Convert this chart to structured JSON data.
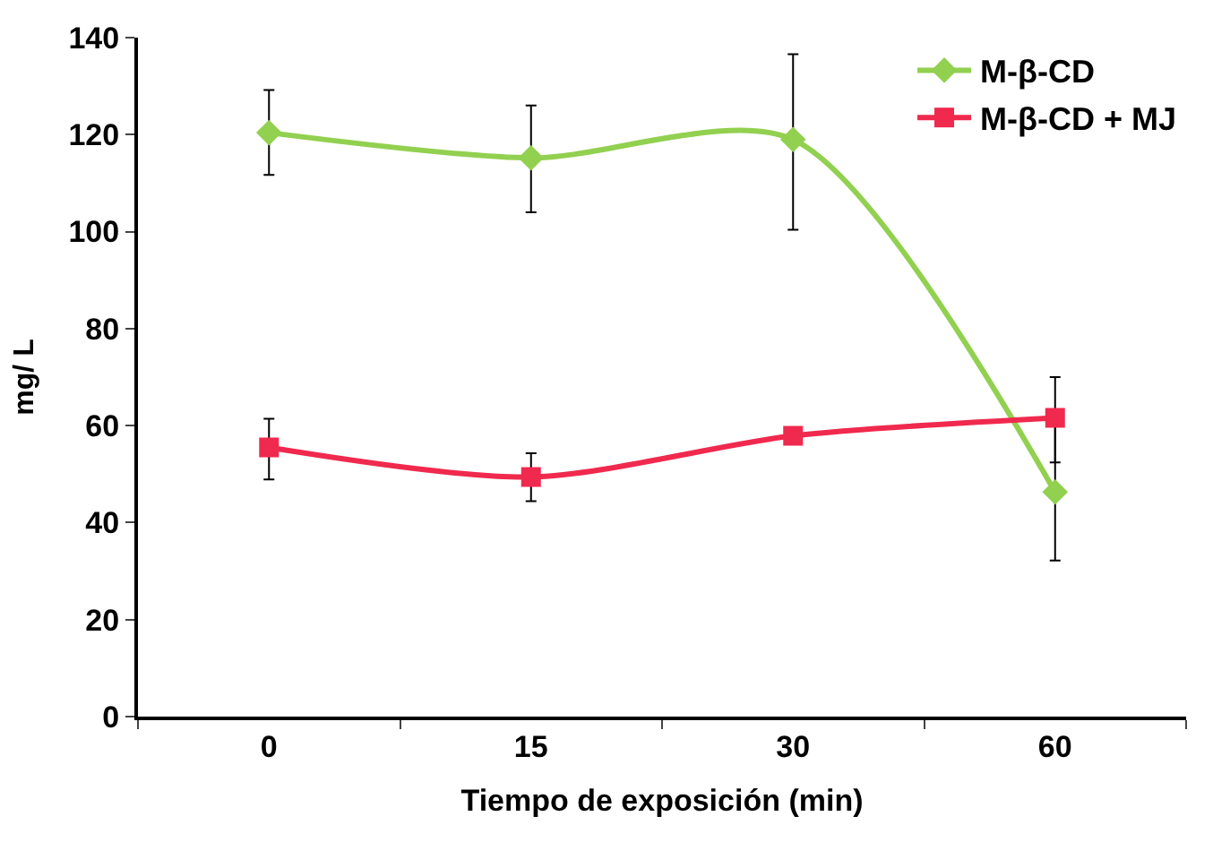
{
  "chart_data": {
    "type": "line",
    "xlabel": "Tiempo de exposición (min)",
    "ylabel": "mg/ L",
    "categories": [
      "0",
      "15",
      "30",
      "60"
    ],
    "series": [
      {
        "name": "M-β-CD",
        "color": "#92d050",
        "marker": "diamond",
        "values": [
          120.4,
          115.2,
          119,
          46.3
        ],
        "errors": [
          [
            111.7,
            129.2
          ],
          [
            104,
            126
          ],
          [
            100.4,
            136.6
          ],
          [
            32.2,
            60.4
          ]
        ]
      },
      {
        "name": "M-β-CD + MJ",
        "color": "#f0294e",
        "marker": "square",
        "values": [
          55.5,
          49.4,
          57.9,
          61.6
        ],
        "errors": [
          [
            48.9,
            61.4
          ],
          [
            44.4,
            54.3
          ],
          null,
          [
            52.4,
            70
          ]
        ]
      }
    ],
    "ylim": [
      0,
      140
    ],
    "yticks": [
      0,
      20,
      40,
      60,
      80,
      100,
      120,
      140
    ],
    "legend": "top right",
    "line_style": "solid"
  }
}
